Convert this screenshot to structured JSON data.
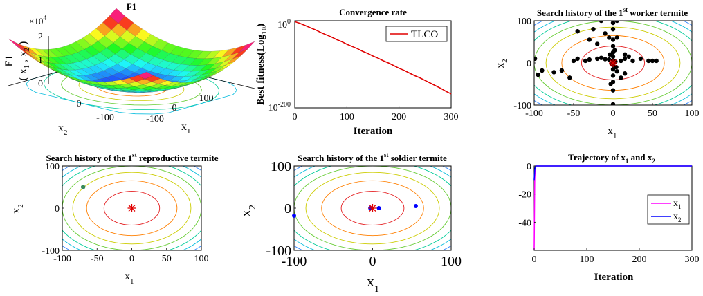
{
  "colors": {
    "contour_scale": [
      "#e41a1c",
      "#ff7f00",
      "#cccc00",
      "#66cc33",
      "#00cc99",
      "#00bbdd",
      "#3388ff",
      "#7744ff",
      "#aa33cc"
    ],
    "tlco_line": "#e00000",
    "x1_line": "#ff00ff",
    "x2_line": "#0000ff",
    "best_marker": "#e00000",
    "worker_points": "#000000",
    "reproductive_points": "#3a8a5a",
    "soldier_points": "#0000ff"
  },
  "chart_data": [
    {
      "id": "surface",
      "type": "surface3d",
      "title": "F1",
      "z_label": "F1",
      "z_label_sub": "( x",
      "z_label_idx1": "1",
      "z_label_mid": " , x",
      "z_label_idx2": "2",
      "z_label_end": " )",
      "z_exponent_base": "×10",
      "z_exponent_power": "4",
      "z_ticks": [
        "2",
        "1",
        "0"
      ],
      "x1_label": "x",
      "x1_sub": "1",
      "x2_label": "x",
      "x2_sub": "2",
      "x1_ticks": [
        "-100",
        "0",
        "100"
      ],
      "x2_ticks": [
        "0",
        "-100"
      ],
      "function": "x1^2 + x2^2",
      "range": [
        -100,
        100
      ],
      "zlim": [
        0,
        20000
      ]
    },
    {
      "id": "convergence",
      "type": "line",
      "title": "Convergence rate",
      "xlabel": "Iteration",
      "ylabel": "Best fitness(Log",
      "ylabel_sub": "10",
      "ylabel_end": ")",
      "xlim": [
        0,
        300
      ],
      "yscale": "log",
      "ylim_exponent": [
        -200,
        0
      ],
      "y_tick_base": "10",
      "y_ticks": [
        {
          "exp": 0,
          "label": "0"
        },
        {
          "exp": -200,
          "label": "-200"
        }
      ],
      "x_ticks": [
        0,
        100,
        200,
        300
      ],
      "series": [
        {
          "name": "TLCO",
          "x": [
            0,
            10,
            20,
            30,
            40,
            50,
            60,
            70,
            80,
            90,
            100,
            110,
            120,
            130,
            140,
            150,
            160,
            170,
            180,
            190,
            200,
            210,
            220,
            230,
            240,
            250,
            260,
            270,
            280,
            290,
            300
          ],
          "log10_y": [
            -2,
            -6,
            -11,
            -16,
            -21,
            -27,
            -32,
            -37,
            -43,
            -48,
            -54,
            -59,
            -64,
            -70,
            -75,
            -81,
            -86,
            -92,
            -97,
            -103,
            -109,
            -114,
            -120,
            -126,
            -131,
            -137,
            -143,
            -149,
            -155,
            -162,
            -168
          ]
        }
      ],
      "legend": "top-right"
    },
    {
      "id": "worker",
      "type": "scatter",
      "title": "Search history of the 1",
      "title_sup": "st",
      "title_end": " worker termite",
      "xlabel": "x",
      "xlabel_sub": "1",
      "ylabel": "x",
      "ylabel_sub": "2",
      "xlim": [
        -100,
        100
      ],
      "ylim": [
        -100,
        100
      ],
      "x_ticks": [
        -100,
        -50,
        0,
        50,
        100
      ],
      "y_ticks": [
        -100,
        0,
        100
      ],
      "contour_levels": [
        40,
        65,
        85,
        100,
        113,
        124,
        134,
        145,
        155
      ],
      "points": [
        [
          -99,
          10
        ],
        [
          -95,
          -28
        ],
        [
          -90,
          -18
        ],
        [
          -75,
          -22
        ],
        [
          -65,
          -18
        ],
        [
          -55,
          -35
        ],
        [
          -50,
          5
        ],
        [
          -45,
          10
        ],
        [
          -35,
          5
        ],
        [
          -30,
          8
        ],
        [
          -20,
          10
        ],
        [
          -15,
          12
        ],
        [
          -10,
          9
        ],
        [
          -5,
          8
        ],
        [
          -45,
          75
        ],
        [
          -30,
          55
        ],
        [
          -25,
          80
        ],
        [
          -20,
          45
        ],
        [
          -15,
          100
        ],
        [
          -10,
          70
        ],
        [
          -5,
          60
        ],
        [
          0,
          95
        ],
        [
          0,
          80
        ],
        [
          0,
          55
        ],
        [
          0,
          40
        ],
        [
          0,
          25
        ],
        [
          0,
          15
        ],
        [
          0,
          5
        ],
        [
          0,
          -5
        ],
        [
          0,
          -15
        ],
        [
          0,
          -30
        ],
        [
          0,
          -45
        ],
        [
          0,
          -65
        ],
        [
          0,
          -98
        ],
        [
          5,
          100
        ],
        [
          5,
          60
        ],
        [
          5,
          -20
        ],
        [
          10,
          -35
        ],
        [
          10,
          5
        ],
        [
          15,
          10
        ],
        [
          15,
          -25
        ],
        [
          15,
          20
        ],
        [
          20,
          15
        ],
        [
          25,
          5
        ],
        [
          35,
          10
        ],
        [
          45,
          5
        ],
        [
          50,
          5
        ],
        [
          55,
          5
        ],
        [
          -2,
          -2
        ],
        [
          3,
          3
        ],
        [
          -4,
          20
        ],
        [
          4,
          -10
        ],
        [
          2,
          30
        ],
        [
          -3,
          -50
        ]
      ],
      "best": [
        0,
        0
      ]
    },
    {
      "id": "reproductive",
      "type": "scatter",
      "title": "Search history of the  1",
      "title_sup": "st",
      "title_end": " reproductive termite",
      "xlabel": "x",
      "xlabel_sub": "1",
      "ylabel": "x",
      "ylabel_sub": "2",
      "xlim": [
        -100,
        100
      ],
      "ylim": [
        -100,
        100
      ],
      "x_ticks": [
        -100,
        -50,
        0,
        50,
        100
      ],
      "y_ticks": [
        -100,
        0,
        100
      ],
      "y_tick_labels": [
        "-100",
        "0",
        "100"
      ],
      "y_tick_at": [
        -100,
        0,
        100
      ],
      "y_mid_ticks": [
        50,
        -50
      ],
      "contour_levels": [
        40,
        65,
        85,
        100,
        113,
        124,
        134,
        145,
        155
      ],
      "points": [
        [
          -70,
          50
        ]
      ],
      "best": [
        0,
        0
      ]
    },
    {
      "id": "soldier",
      "type": "scatter",
      "title": "Search history of the 1",
      "title_sup": "st",
      "title_end": " soldier termite",
      "xlabel": "x",
      "xlabel_sub": "1",
      "ylabel": "x",
      "ylabel_sub": "2",
      "xlim": [
        -100,
        100
      ],
      "ylim": [
        -100,
        100
      ],
      "x_ticks": [
        -100,
        0,
        100
      ],
      "y_ticks": [
        -100,
        0,
        100
      ],
      "contour_levels": [
        40,
        65,
        85,
        100,
        113,
        124,
        134,
        145,
        155
      ],
      "points": [
        [
          -100,
          -18
        ],
        [
          55,
          5
        ],
        [
          8,
          0
        ],
        [
          -3,
          0
        ]
      ],
      "best": [
        0,
        0
      ]
    },
    {
      "id": "trajectory",
      "type": "line",
      "title": "Trajectory of x",
      "title_sub1": "1",
      "title_mid": " and x",
      "title_sub2": "2",
      "xlabel": "Iteration",
      "xlim": [
        0,
        300
      ],
      "ylim": [
        -60,
        0
      ],
      "x_ticks": [
        0,
        100,
        200,
        300
      ],
      "y_ticks": [
        0,
        -20,
        -40
      ],
      "series": [
        {
          "name": "x",
          "name_sub": "1",
          "x": [
            0,
            1,
            2,
            3,
            5,
            300
          ],
          "y": [
            -60,
            -10,
            -2,
            0,
            0,
            0
          ]
        },
        {
          "name": "x",
          "name_sub": "2",
          "x": [
            0,
            1,
            2,
            3,
            5,
            300
          ],
          "y": [
            -10,
            -3,
            -1,
            0,
            0,
            0
          ]
        }
      ],
      "legend": "right"
    }
  ]
}
